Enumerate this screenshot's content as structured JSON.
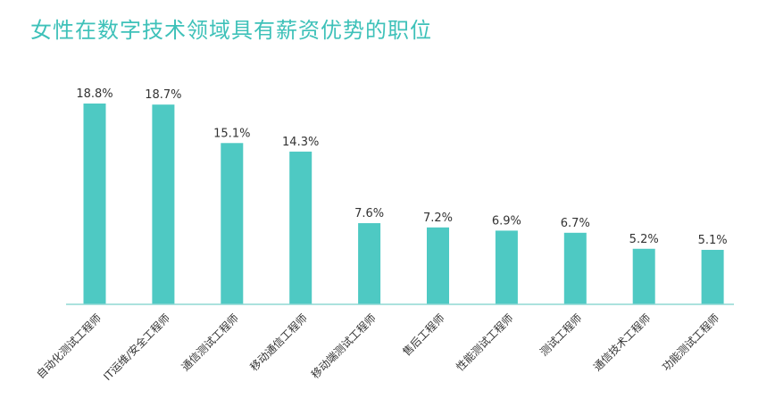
{
  "chart_data": {
    "type": "bar",
    "title": "女性在数字技术领域具有薪资优势的职位",
    "categories": [
      "自动化测试工程师",
      "IT运维/安全工程师",
      "通信测试工程师",
      "移动通信工程师",
      "移动端测试工程师",
      "售后工程师",
      "性能测试工程师",
      "测试工程师",
      "通信技术工程师",
      "功能测试工程师"
    ],
    "values": [
      18.8,
      18.7,
      15.1,
      14.3,
      7.6,
      7.2,
      6.9,
      6.7,
      5.2,
      5.1
    ],
    "value_labels": [
      "18.8%",
      "18.7%",
      "15.1%",
      "14.3%",
      "7.6%",
      "7.2%",
      "6.9%",
      "6.7%",
      "5.2%",
      "5.1%"
    ],
    "xlabel": "",
    "ylabel": "",
    "ylim": [
      0,
      18.8
    ],
    "grid": false,
    "colors": {
      "bar": "#4ec9c3",
      "title": "#3ec1b9",
      "axis": "#8fd8d4",
      "label": "#333333"
    }
  }
}
